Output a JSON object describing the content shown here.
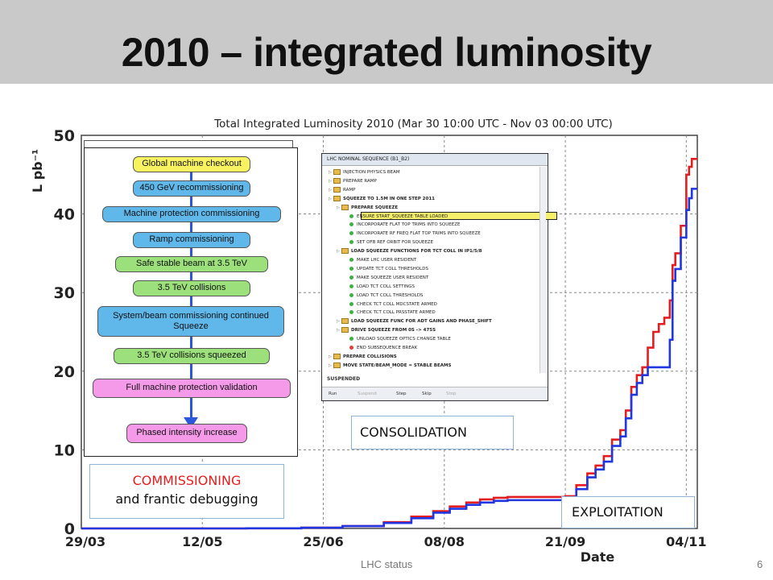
{
  "slide": {
    "title": "2010 – integrated luminosity",
    "footer_text": "LHC status",
    "page_number": "6"
  },
  "chart_data": {
    "type": "line",
    "title": "Total Integrated Luminosity 2010 (Mar 30 10:00 UTC - Nov 03 00:00 UTC)",
    "xlabel": "Date",
    "ylabel": "L pb⁻¹",
    "x_tick_labels": [
      "29/03",
      "12/05",
      "25/06",
      "08/08",
      "21/09",
      "04/11"
    ],
    "x_tick_days": [
      0,
      44,
      88,
      132,
      176,
      220
    ],
    "xlim_days": [
      0,
      224
    ],
    "y_ticks": [
      0,
      10,
      20,
      30,
      40,
      50
    ],
    "ylim": [
      0,
      50
    ],
    "grid": true,
    "colors": {
      "red": "#e41e1e",
      "blue": "#1f36e0",
      "grid": "#888888"
    },
    "series": [
      {
        "color": "red",
        "x": [
          0,
          60,
          80,
          95,
          110,
          120,
          128,
          134,
          140,
          145,
          150,
          155,
          160,
          165,
          170,
          176,
          180,
          184,
          187,
          190,
          193,
          196,
          198,
          200,
          202,
          204,
          206,
          208,
          210,
          212,
          214,
          215,
          216,
          218,
          220,
          221,
          222,
          224
        ],
        "y": [
          0,
          0.02,
          0.1,
          0.3,
          0.8,
          1.5,
          2.2,
          2.8,
          3.3,
          3.7,
          3.9,
          4.0,
          4.0,
          4.0,
          4.0,
          4.1,
          5.5,
          7.0,
          8.0,
          9.2,
          11.3,
          12.5,
          15.0,
          18.0,
          19.5,
          20.5,
          23.0,
          25.0,
          26.0,
          26.8,
          29.0,
          33.5,
          35.0,
          38.5,
          45.0,
          46.0,
          47.0,
          47.0
        ]
      },
      {
        "color": "blue",
        "x": [
          0,
          60,
          80,
          95,
          110,
          120,
          128,
          134,
          140,
          145,
          150,
          155,
          160,
          165,
          170,
          176,
          180,
          184,
          187,
          190,
          193,
          196,
          198,
          200,
          202,
          204,
          206,
          208,
          210,
          212,
          214,
          215,
          216,
          218,
          220,
          221,
          222,
          224
        ],
        "y": [
          0,
          0.02,
          0.1,
          0.3,
          0.7,
          1.3,
          2.0,
          2.5,
          3.0,
          3.3,
          3.5,
          3.6,
          3.6,
          3.6,
          3.6,
          3.7,
          5.0,
          6.5,
          7.5,
          8.5,
          10.5,
          11.7,
          14.0,
          17.0,
          18.5,
          19.5,
          20.5,
          20.5,
          20.5,
          20.5,
          24.0,
          31.5,
          33.0,
          37.0,
          40.5,
          42.0,
          43.2,
          43.2
        ]
      }
    ]
  },
  "commissioning_flow": {
    "steps": [
      {
        "label": "Global machine checkout",
        "color": "#f7f260"
      },
      {
        "label": "450 GeV recommissioning",
        "color": "#5fb7ea"
      },
      {
        "label": "Machine protection commissioning",
        "color": "#5fb7ea"
      },
      {
        "label": "Ramp commissioning",
        "color": "#5fb7ea"
      },
      {
        "label": "Safe stable beam at 3.5 TeV",
        "color": "#9be07a"
      },
      {
        "label": "3.5 TeV collisions",
        "color": "#9be07a"
      },
      {
        "label": "System/beam commissioning continued Squeeze",
        "color": "#5fb7ea"
      },
      {
        "label": "3.5 TeV collisions squeezed",
        "color": "#9be07a"
      },
      {
        "label": "Full machine protection validation",
        "color": "#f59ae8"
      },
      {
        "label": "Phased intensity increase",
        "color": "#f59ae8"
      }
    ]
  },
  "sequence_window": {
    "header": "LHC NOMINAL SEQUENCE (B1_B2)",
    "items": [
      "INJECTION PHYSICS BEAM",
      "PREPARE RAMP",
      "RAMP",
      "SQUEEZE TO 1.5M IN ONE STEP 2011",
      "PREPARE SQUEEZE",
      "ENSURE START_SQUEEZE TABLE LOADED",
      "INCORPORATE FLAT TOP TRIMS INTO SQUEEZE",
      "INCORPORATE RF FREQ FLAT TOP TRIMS INTO SQUEEZE",
      "SET OFB REF ORBIT FOR SQUEEZE",
      "LOAD SQUEEZE FUNCTIONS FOR TCT COLL IN IP1/5/8",
      "MAKE LHC USER RESIDENT",
      "UPDATE TCT COLL THRESHOLDS",
      "MAKE SQUEEZE USER RESIDENT",
      "LOAD TCT COLL SETTINGS",
      "LOAD TCT COLL THRESHOLDS",
      "CHECK TCT COLL MDCSTATE ARMED",
      "CHECK TCT COLL PRSSTATE ARMED",
      "LOAD SQUEEZE FUNC FOR ADT GAINS AND PHASE_SHIFT",
      "DRIVE SQUEEZE FROM 0S -> 475S",
      "UNLOAD SQUEEZE OPTICS CHANGE TABLE",
      "END SUBSEQUENCE BREAK",
      "PREPARE COLLISIONS",
      "MOVE STATE/BEAM_MODE = STABLE BEAMS"
    ],
    "status": "SUSPENDED",
    "buttons": [
      "Run",
      "Suspend",
      "Step",
      "Skip",
      "Stop"
    ]
  },
  "annotations": {
    "commissioning_line1": "COMMISSIONING",
    "commissioning_line2": "and frantic debugging",
    "commissioning_color": "#e41e1e",
    "consolidation": "CONSOLIDATION",
    "exploitation": "EXPLOITATION"
  }
}
